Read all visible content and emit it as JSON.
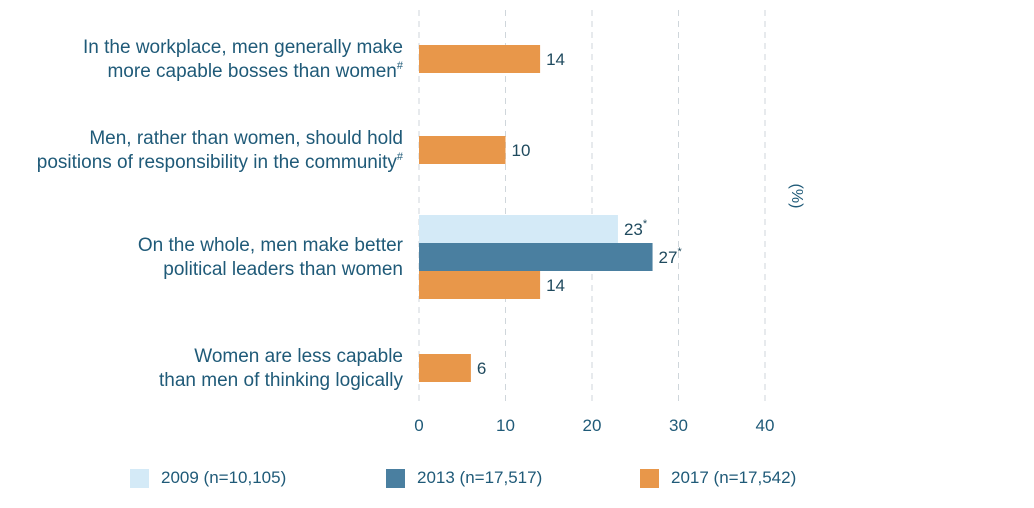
{
  "chart_data": {
    "type": "bar",
    "orientation": "horizontal",
    "categories": [
      {
        "lines": [
          "In the workplace, men generally make",
          "more capable bosses than women"
        ],
        "mark": "#"
      },
      {
        "lines": [
          "Men, rather than women, should hold",
          "positions of responsibility in the community"
        ],
        "mark": "#"
      },
      {
        "lines": [
          "On the whole, men make better",
          "political leaders than women"
        ],
        "mark": ""
      },
      {
        "lines": [
          "Women are less capable",
          "than men of thinking logically"
        ],
        "mark": ""
      }
    ],
    "series": [
      {
        "name": "2009 (n=10,105)",
        "color": "#d4eaf7",
        "values": [
          null,
          null,
          23,
          null
        ],
        "labels": [
          "",
          "",
          "23",
          ""
        ],
        "marks": [
          "",
          "",
          "*",
          ""
        ]
      },
      {
        "name": "2013 (n=17,517)",
        "color": "#4a7fa0",
        "values": [
          null,
          null,
          27,
          null
        ],
        "labels": [
          "",
          "",
          "27",
          ""
        ],
        "marks": [
          "",
          "",
          "*",
          ""
        ]
      },
      {
        "name": "2017 (n=17,542)",
        "color": "#e8974a",
        "values": [
          14,
          10,
          14,
          6
        ],
        "labels": [
          "14",
          "10",
          "14",
          "6"
        ],
        "marks": [
          "",
          "",
          "",
          ""
        ]
      }
    ],
    "xlim": [
      0,
      40
    ],
    "xticks": [
      "0",
      "10",
      "20",
      "30",
      "40"
    ],
    "unit_label": "(%)",
    "grid": "vertical dashed",
    "legend_position": "bottom"
  }
}
